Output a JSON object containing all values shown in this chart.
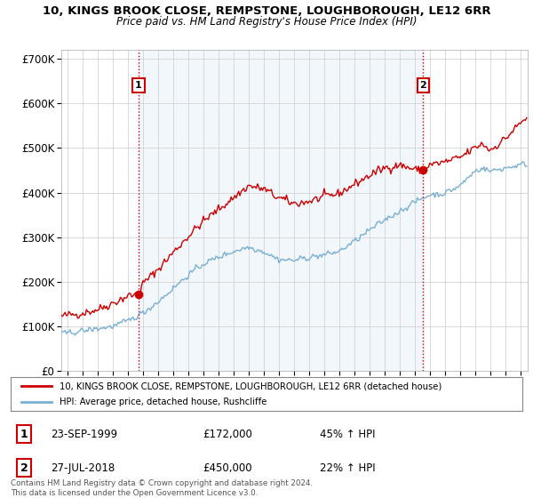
{
  "title1": "10, KINGS BROOK CLOSE, REMPSTONE, LOUGHBOROUGH, LE12 6RR",
  "title2": "Price paid vs. HM Land Registry's House Price Index (HPI)",
  "ylabel_ticks": [
    "£0",
    "£100K",
    "£200K",
    "£300K",
    "£400K",
    "£500K",
    "£600K",
    "£700K"
  ],
  "ytick_values": [
    0,
    100000,
    200000,
    300000,
    400000,
    500000,
    600000,
    700000
  ],
  "ylim": [
    0,
    720000
  ],
  "xlim_start": 1994.6,
  "xlim_end": 2025.5,
  "xticks": [
    1995,
    1996,
    1997,
    1998,
    1999,
    2000,
    2001,
    2002,
    2003,
    2004,
    2005,
    2006,
    2007,
    2008,
    2009,
    2010,
    2011,
    2012,
    2013,
    2014,
    2015,
    2016,
    2017,
    2018,
    2019,
    2020,
    2021,
    2022,
    2023,
    2024,
    2025
  ],
  "red_line_color": "#cc0000",
  "blue_line_color": "#7ab0d4",
  "vline_color": "#cc0000",
  "fill_color": "#ddeeff",
  "fill_alpha": 0.5,
  "marker1_x": 1999.72,
  "marker1_y": 172000,
  "marker2_x": 2018.57,
  "marker2_y": 450000,
  "legend_red": "10, KINGS BROOK CLOSE, REMPSTONE, LOUGHBOROUGH, LE12 6RR (detached house)",
  "legend_blue": "HPI: Average price, detached house, Rushcliffe",
  "annotation1_label": "1",
  "annotation1_date": "23-SEP-1999",
  "annotation1_price": "£172,000",
  "annotation1_hpi": "45% ↑ HPI",
  "annotation2_label": "2",
  "annotation2_date": "27-JUL-2018",
  "annotation2_price": "£450,000",
  "annotation2_hpi": "22% ↑ HPI",
  "footnote": "Contains HM Land Registry data © Crown copyright and database right 2024.\nThis data is licensed under the Open Government Licence v3.0.",
  "background_color": "#ffffff",
  "grid_color": "#cccccc"
}
